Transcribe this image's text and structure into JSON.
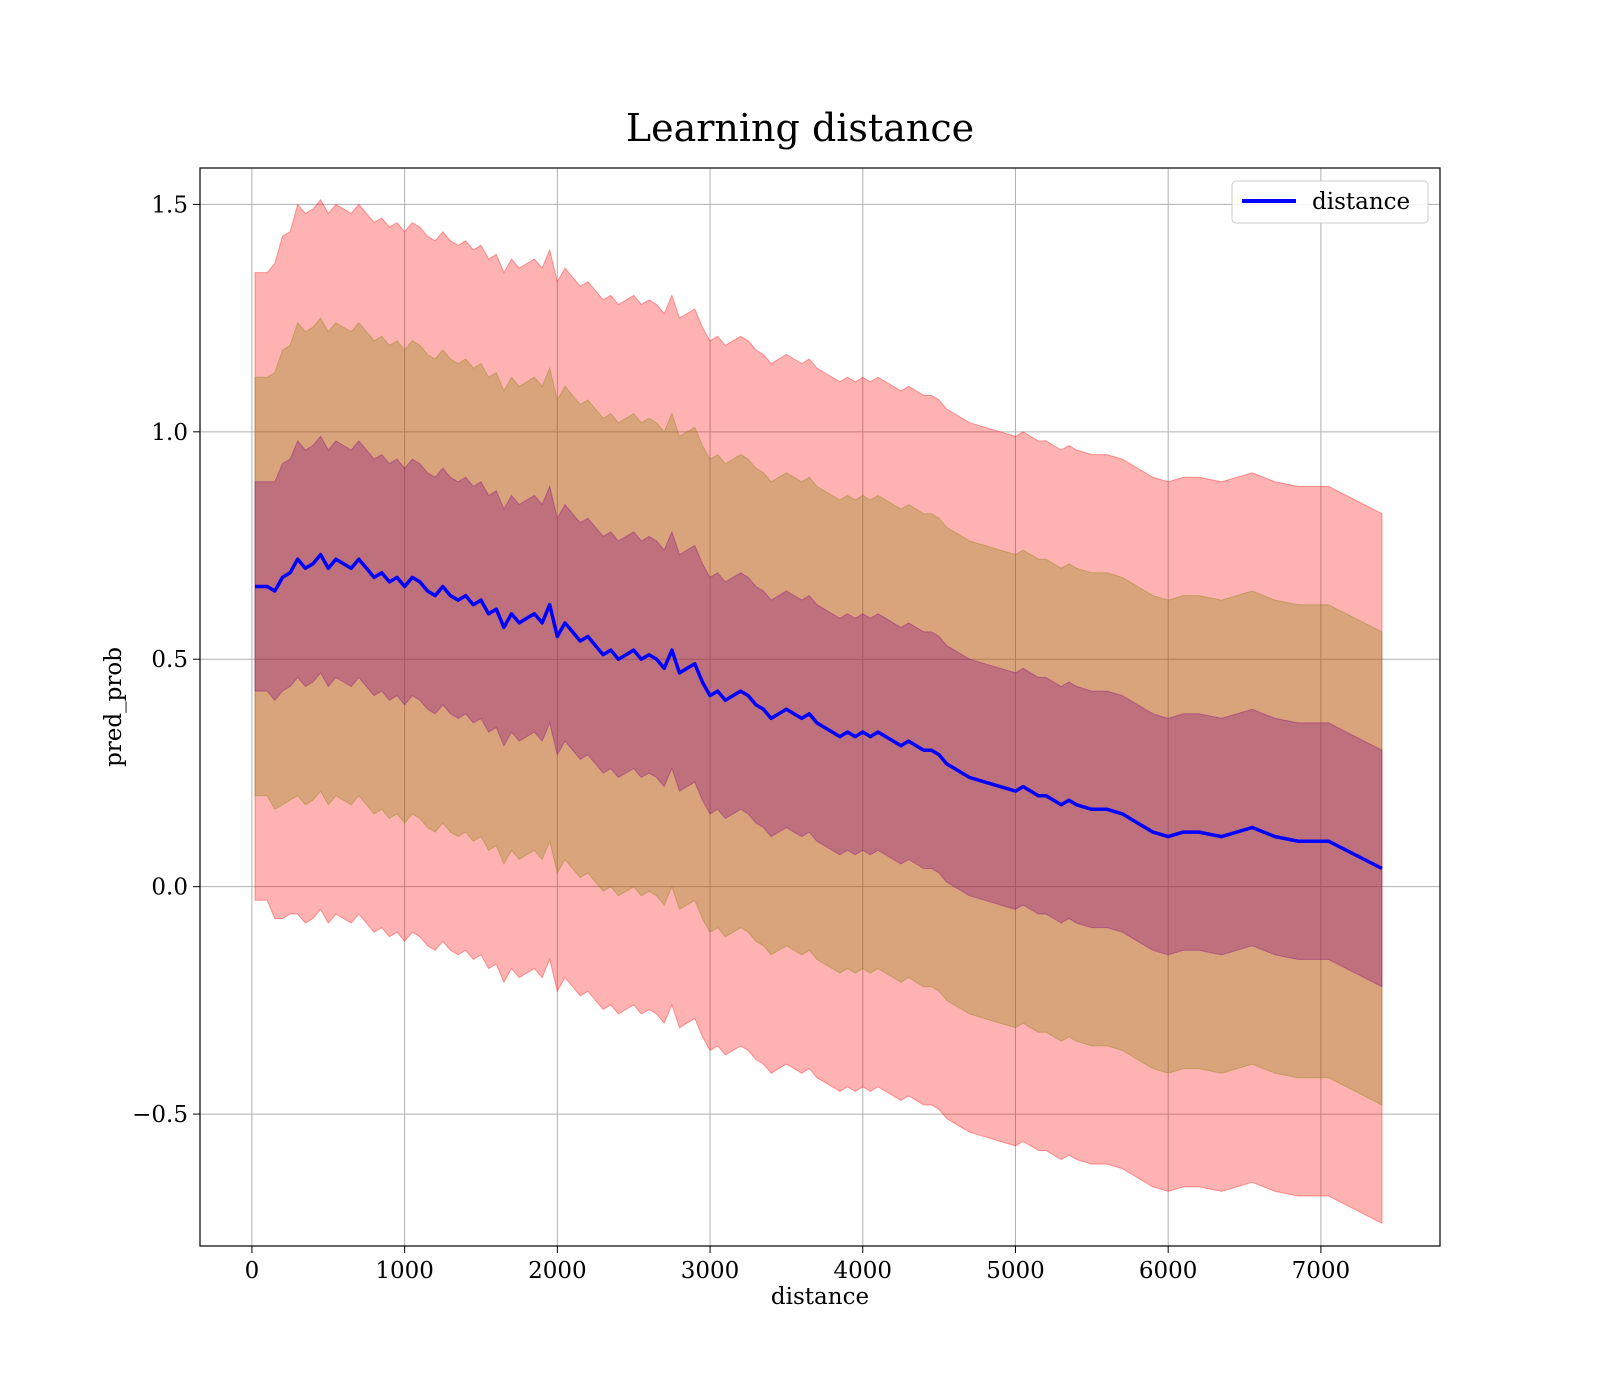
{
  "chart_data": {
    "type": "line",
    "title": "Learning distance",
    "xlabel": "distance",
    "ylabel": "pred_prob",
    "xlim": [
      -340,
      7780
    ],
    "ylim": [
      -0.79,
      1.58
    ],
    "x_ticks": [
      0,
      1000,
      2000,
      3000,
      4000,
      5000,
      6000,
      7000
    ],
    "x_tick_labels": [
      "0",
      "1000",
      "2000",
      "3000",
      "4000",
      "5000",
      "6000",
      "7000"
    ],
    "y_ticks": [
      -0.5,
      0.0,
      0.5,
      1.0,
      1.5
    ],
    "y_tick_labels": [
      "−0.5",
      "0.0",
      "0.5",
      "1.0",
      "1.5"
    ],
    "grid": true,
    "legend_position": "top-right",
    "series": [
      {
        "name": "distance",
        "color": "#0000ff",
        "x": [
          20,
          100,
          150,
          200,
          250,
          300,
          350,
          400,
          450,
          500,
          550,
          600,
          650,
          700,
          750,
          800,
          850,
          900,
          950,
          1000,
          1050,
          1100,
          1150,
          1200,
          1250,
          1300,
          1350,
          1400,
          1450,
          1500,
          1550,
          1600,
          1650,
          1700,
          1750,
          1800,
          1850,
          1900,
          1950,
          2000,
          2050,
          2100,
          2150,
          2200,
          2250,
          2300,
          2350,
          2400,
          2450,
          2500,
          2550,
          2600,
          2650,
          2700,
          2750,
          2800,
          2850,
          2900,
          2950,
          3000,
          3050,
          3100,
          3150,
          3200,
          3250,
          3300,
          3350,
          3400,
          3450,
          3500,
          3550,
          3600,
          3650,
          3700,
          3750,
          3800,
          3850,
          3900,
          3950,
          4000,
          4050,
          4100,
          4150,
          4200,
          4250,
          4300,
          4350,
          4400,
          4450,
          4500,
          4550,
          4600,
          4650,
          4700,
          4800,
          4900,
          5000,
          5050,
          5100,
          5150,
          5200,
          5250,
          5300,
          5350,
          5400,
          5500,
          5600,
          5700,
          5800,
          5900,
          6000,
          6100,
          6200,
          6350,
          6450,
          6550,
          6700,
          6850,
          7050,
          7400
        ],
        "y": [
          0.66,
          0.66,
          0.65,
          0.68,
          0.69,
          0.72,
          0.7,
          0.71,
          0.73,
          0.7,
          0.72,
          0.71,
          0.7,
          0.72,
          0.7,
          0.68,
          0.69,
          0.67,
          0.68,
          0.66,
          0.68,
          0.67,
          0.65,
          0.64,
          0.66,
          0.64,
          0.63,
          0.64,
          0.62,
          0.63,
          0.6,
          0.61,
          0.57,
          0.6,
          0.58,
          0.59,
          0.6,
          0.58,
          0.62,
          0.55,
          0.58,
          0.56,
          0.54,
          0.55,
          0.53,
          0.51,
          0.52,
          0.5,
          0.51,
          0.52,
          0.5,
          0.51,
          0.5,
          0.48,
          0.52,
          0.47,
          0.48,
          0.49,
          0.45,
          0.42,
          0.43,
          0.41,
          0.42,
          0.43,
          0.42,
          0.4,
          0.39,
          0.37,
          0.38,
          0.39,
          0.38,
          0.37,
          0.38,
          0.36,
          0.35,
          0.34,
          0.33,
          0.34,
          0.33,
          0.34,
          0.33,
          0.34,
          0.33,
          0.32,
          0.31,
          0.32,
          0.31,
          0.3,
          0.3,
          0.29,
          0.27,
          0.26,
          0.25,
          0.24,
          0.23,
          0.22,
          0.21,
          0.22,
          0.21,
          0.2,
          0.2,
          0.19,
          0.18,
          0.19,
          0.18,
          0.17,
          0.17,
          0.16,
          0.14,
          0.12,
          0.11,
          0.12,
          0.12,
          0.11,
          0.12,
          0.13,
          0.11,
          0.1,
          0.1,
          0.04
        ]
      }
    ],
    "bands": [
      {
        "color": "#ff0000",
        "alpha": 0.3,
        "offset_std": 3
      },
      {
        "color": "#808000",
        "alpha": 0.3,
        "offset_std": 2
      },
      {
        "color": "#800080",
        "alpha": 0.3,
        "offset_std": 1
      }
    ],
    "band_std": [
      0.46,
      0.46,
      0.47,
      0.48,
      0.48,
      0.49,
      0.49,
      0.49,
      0.49,
      0.49,
      0.49,
      0.49,
      0.49,
      0.49,
      0.49,
      0.49,
      0.49,
      0.49,
      0.49,
      0.49,
      0.49,
      0.49,
      0.49,
      0.49,
      0.49,
      0.49,
      0.49,
      0.49,
      0.49,
      0.49,
      0.49,
      0.49,
      0.49,
      0.49,
      0.49,
      0.49,
      0.49,
      0.49,
      0.49,
      0.49,
      0.49,
      0.49,
      0.49,
      0.49,
      0.49,
      0.49,
      0.49,
      0.49,
      0.49,
      0.49,
      0.49,
      0.49,
      0.49,
      0.49,
      0.49,
      0.49,
      0.49,
      0.49,
      0.49,
      0.49,
      0.49,
      0.49,
      0.49,
      0.49,
      0.49,
      0.49,
      0.49,
      0.49,
      0.49,
      0.49,
      0.49,
      0.49,
      0.49,
      0.49,
      0.49,
      0.49,
      0.49,
      0.49,
      0.49,
      0.49,
      0.49,
      0.49,
      0.49,
      0.49,
      0.49,
      0.49,
      0.49,
      0.49,
      0.49,
      0.49,
      0.49,
      0.49,
      0.49,
      0.49,
      0.49,
      0.49,
      0.49,
      0.49,
      0.49,
      0.49,
      0.49,
      0.49,
      0.49,
      0.49,
      0.49,
      0.49,
      0.49,
      0.49,
      0.49,
      0.49,
      0.49,
      0.49,
      0.49,
      0.49,
      0.49,
      0.49,
      0.49,
      0.49,
      0.49,
      0.49
    ]
  }
}
